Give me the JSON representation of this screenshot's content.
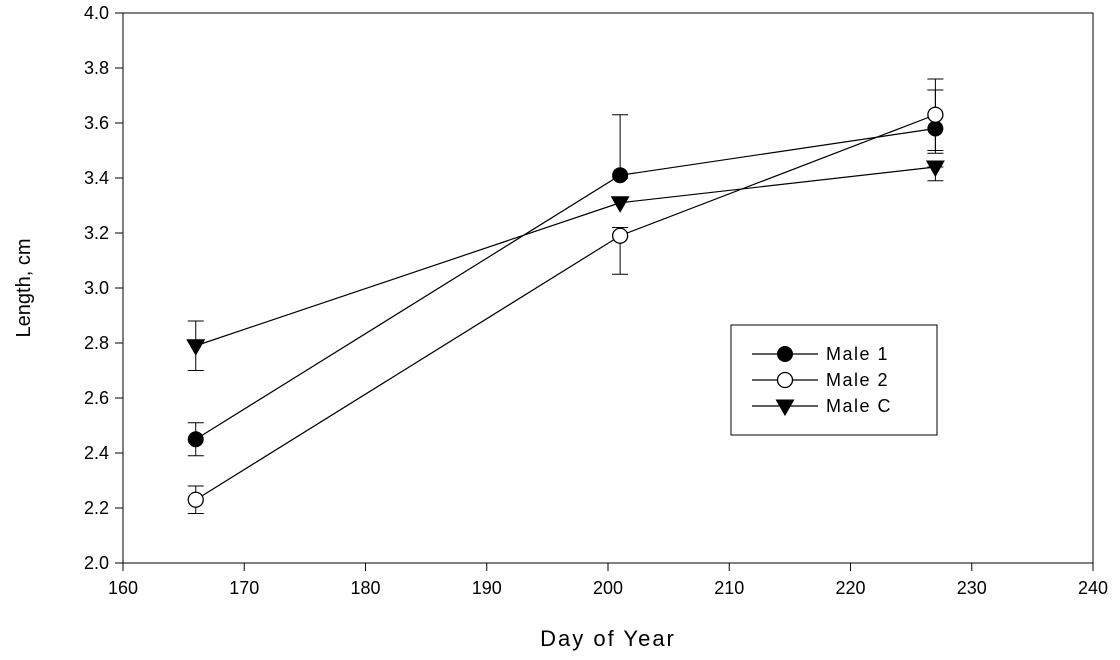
{
  "chart_data": {
    "type": "line",
    "xlabel": "Day of Year",
    "ylabel": "Length, cm",
    "xlim": [
      160,
      240
    ],
    "ylim": [
      2.0,
      4.0
    ],
    "x_ticks": [
      "160",
      "170",
      "180",
      "190",
      "200",
      "210",
      "220",
      "230",
      "240"
    ],
    "y_ticks": [
      "2.0",
      "2.2",
      "2.4",
      "2.6",
      "2.8",
      "3.0",
      "3.2",
      "3.4",
      "3.6",
      "3.8",
      "4.0"
    ],
    "grid": false,
    "legend_position": "center-right",
    "series": [
      {
        "name": "Male 1",
        "marker": "filled-circle",
        "points": [
          {
            "x": 166,
            "y": 2.45,
            "err_low": 2.39,
            "err_high": 2.51
          },
          {
            "x": 201,
            "y": 3.41,
            "err_low": 3.4,
            "err_high": 3.63
          },
          {
            "x": 227,
            "y": 3.58,
            "err_low": 3.49,
            "err_high": 3.72
          }
        ]
      },
      {
        "name": "Male 2",
        "marker": "open-circle",
        "points": [
          {
            "x": 166,
            "y": 2.23,
            "err_low": 2.18,
            "err_high": 2.28
          },
          {
            "x": 201,
            "y": 3.19,
            "err_low": 3.05,
            "err_high": 3.22
          },
          {
            "x": 227,
            "y": 3.63,
            "err_low": 3.5,
            "err_high": 3.76
          }
        ]
      },
      {
        "name": "Male C",
        "marker": "filled-triangle-down",
        "points": [
          {
            "x": 166,
            "y": 2.79,
            "err_low": 2.7,
            "err_high": 2.88
          },
          {
            "x": 201,
            "y": 3.31,
            "err_low": 3.31,
            "err_high": 3.31
          },
          {
            "x": 227,
            "y": 3.44,
            "err_low": 3.39,
            "err_high": 3.44
          }
        ]
      }
    ]
  }
}
